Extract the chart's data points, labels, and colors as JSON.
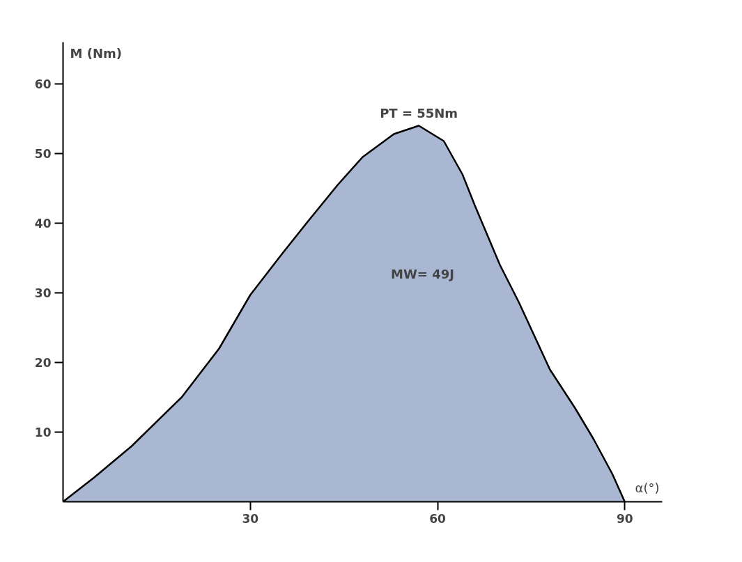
{
  "chart_data": {
    "type": "area",
    "xlabel": "α(°)",
    "ylabel": "M (Nm)",
    "x": [
      0,
      5,
      11,
      19,
      25,
      30,
      35,
      39,
      44,
      48,
      53,
      57,
      61,
      64,
      66,
      70,
      73,
      78,
      82,
      85,
      88,
      90
    ],
    "series": [
      {
        "color": "#aab7d3",
        "values": [
          0,
          3.5,
          8,
          15,
          22,
          29.7,
          35.5,
          40,
          45.5,
          49.5,
          52.8,
          54,
          51.8,
          47,
          42.5,
          34,
          28.7,
          19,
          13.5,
          9,
          4,
          0
        ]
      }
    ],
    "xlim": [
      0,
      96
    ],
    "ylim": [
      0,
      66
    ],
    "xticks": [
      30,
      60,
      90
    ],
    "yticks": [
      10,
      20,
      30,
      40,
      50,
      60
    ],
    "annotations": [
      {
        "text": "PT = 55Nm",
        "x": 57,
        "y": 54
      },
      "MW= 49J"
    ]
  }
}
